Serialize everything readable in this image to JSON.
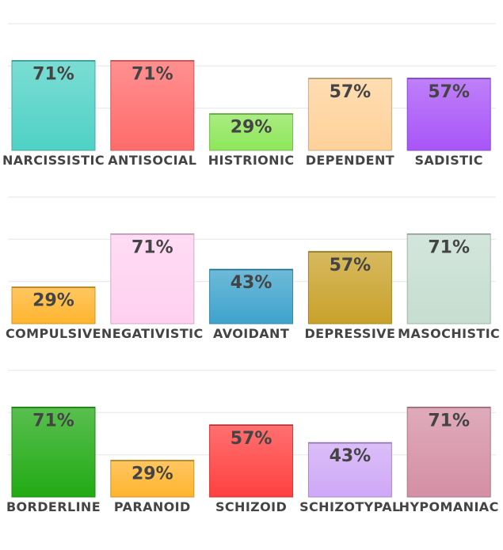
{
  "chart_data": [
    {
      "type": "bar",
      "categories": [
        "NARCISSISTIC",
        "ANTISOCIAL",
        "HISTRIONIC",
        "DEPENDENT",
        "SADISTIC"
      ],
      "values": [
        71,
        71,
        29,
        57,
        57
      ],
      "labels": [
        "71%",
        "71%",
        "29%",
        "57%",
        "57%"
      ],
      "colors": [
        "#4fd1c5",
        "#ff6b6b",
        "#8ee65a",
        "#ffd199",
        "#a855f7"
      ],
      "ylim": [
        0,
        100
      ],
      "grid": true,
      "legend": "none"
    },
    {
      "type": "bar",
      "categories": [
        "COMPULSIVE",
        "NEGATIVISTIC",
        "AVOIDANT",
        "DEPRESSIVE",
        "MASOCHISTIC"
      ],
      "values": [
        29,
        71,
        43,
        57,
        71
      ],
      "labels": [
        "29%",
        "71%",
        "43%",
        "57%",
        "71%"
      ],
      "colors": [
        "#ffb42e",
        "#ffd0f0",
        "#3ea3cc",
        "#c9a22a",
        "#c6ddd0"
      ],
      "ylim": [
        0,
        100
      ],
      "grid": true,
      "legend": "none"
    },
    {
      "type": "bar",
      "categories": [
        "BORDERLINE",
        "PARANOID",
        "SCHIZOID",
        "SCHIZOTYPAL",
        "HYPOMANIAC"
      ],
      "values": [
        71,
        29,
        57,
        43,
        71
      ],
      "labels": [
        "71%",
        "29%",
        "57%",
        "43%",
        "71%"
      ],
      "colors": [
        "#22aa14",
        "#ffb42e",
        "#ff4040",
        "#cfa8f6",
        "#d48fa4"
      ],
      "ylim": [
        0,
        100
      ],
      "grid": true,
      "legend": "none"
    }
  ]
}
